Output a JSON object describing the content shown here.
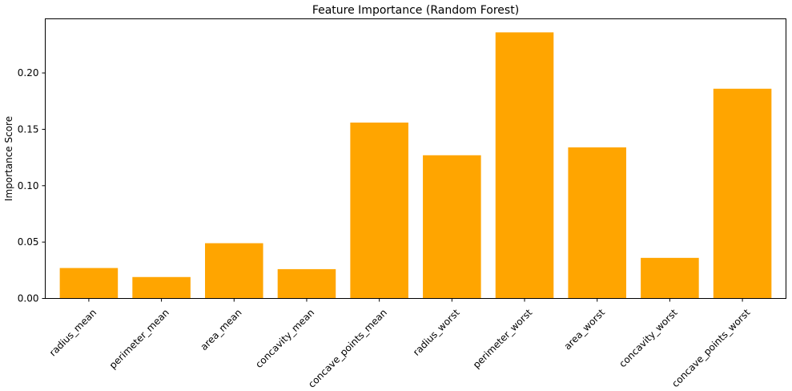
{
  "chart_data": {
    "type": "bar",
    "title": "Feature Importance (Random Forest)",
    "xlabel": "",
    "ylabel": "Importance Score",
    "categories": [
      "radius_mean",
      "perimeter_mean",
      "area_mean",
      "concavity_mean",
      "concave_points_mean",
      "radius_worst",
      "perimeter_worst",
      "area_worst",
      "concavity_worst",
      "concave_points_worst"
    ],
    "values": [
      0.027,
      0.019,
      0.049,
      0.026,
      0.156,
      0.127,
      0.236,
      0.134,
      0.036,
      0.186
    ],
    "yticks": [
      0.0,
      0.05,
      0.1,
      0.15,
      0.2
    ],
    "ytick_labels": [
      "0.00",
      "0.05",
      "0.10",
      "0.15",
      "0.20"
    ],
    "ylim": [
      0,
      0.248
    ],
    "grid": false,
    "bar_color": "#FFA500"
  }
}
